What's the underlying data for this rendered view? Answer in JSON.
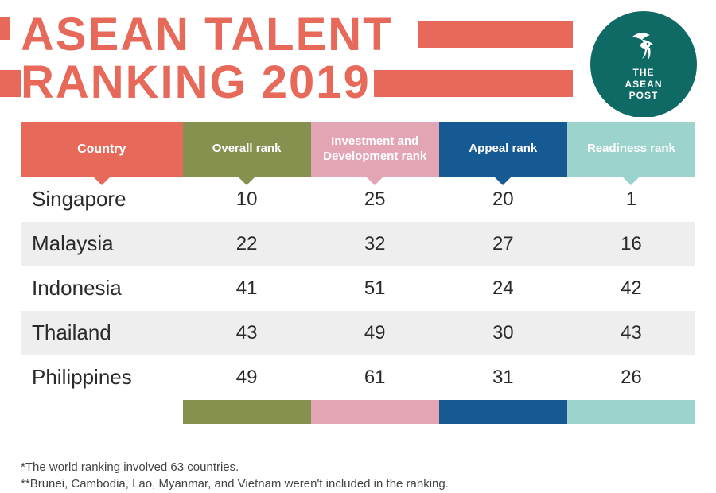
{
  "header": {
    "title_line1": "ASEAN TALENT",
    "title_line2": "RANKING 2019",
    "title_color": "#e6695a",
    "accent_color": "#e6695a",
    "logo": {
      "bg": "#0f6964",
      "fg": "#ffffff",
      "glyph": "§",
      "line1": "THE",
      "line2": "ASEAN",
      "line3": "POST"
    }
  },
  "table": {
    "columns": [
      {
        "label": "Country",
        "bg": "#e6695a",
        "footer_bg": "#ffffff"
      },
      {
        "label": "Overall rank",
        "bg": "#87914f",
        "footer_bg": "#87914f"
      },
      {
        "label": "Investment and Development rank",
        "bg": "#e3a5b4",
        "footer_bg": "#e3a5b4"
      },
      {
        "label": "Appeal rank",
        "bg": "#155a92",
        "footer_bg": "#155a92"
      },
      {
        "label": "Readiness rank",
        "bg": "#9cd4cd",
        "footer_bg": "#9cd4cd"
      }
    ],
    "row_bg": "#ffffff",
    "row_alt_bg": "#eeeeee",
    "header_text_color": "#ffffff",
    "cell_text_color": "#2a2a2a",
    "rows": [
      {
        "country": "Singapore",
        "overall": "10",
        "invest": "25",
        "appeal": "20",
        "ready": "1"
      },
      {
        "country": "Malaysia",
        "overall": "22",
        "invest": "32",
        "appeal": "27",
        "ready": "16"
      },
      {
        "country": "Indonesia",
        "overall": "41",
        "invest": "51",
        "appeal": "24",
        "ready": "42"
      },
      {
        "country": "Thailand",
        "overall": "43",
        "invest": "49",
        "appeal": "30",
        "ready": "43"
      },
      {
        "country": "Philippines",
        "overall": "49",
        "invest": "61",
        "appeal": "31",
        "ready": "26"
      }
    ]
  },
  "footnotes": {
    "fn1": "The world ranking involved 63 countries.",
    "fn2": "Brunei, Cambodia, Lao, Myanmar, and Vietnam weren't included in the ranking."
  }
}
